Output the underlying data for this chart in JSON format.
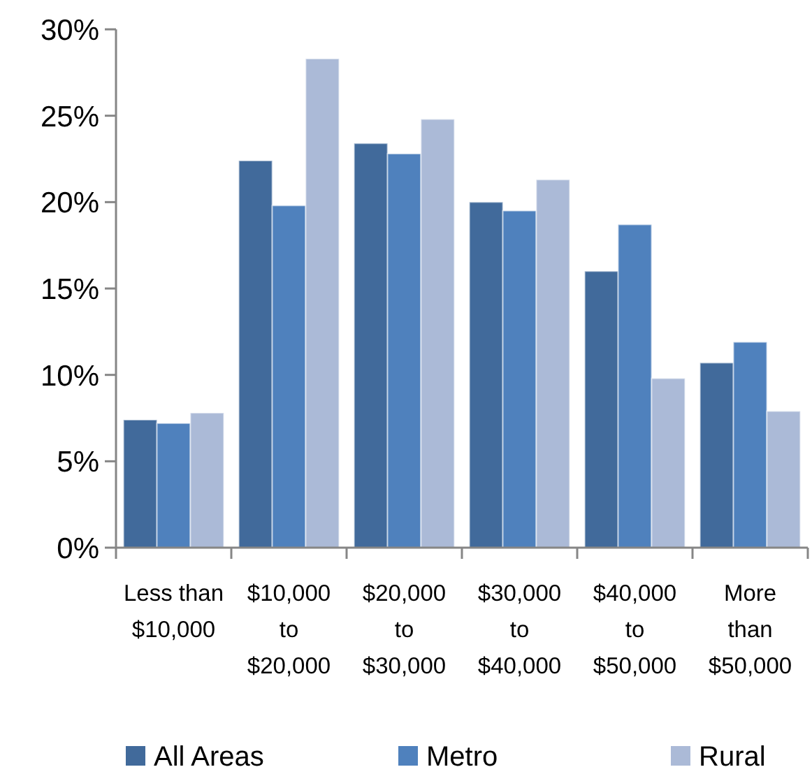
{
  "chart_data": {
    "type": "bar",
    "categories": [
      "Less than\n$10,000",
      "$10,000\nto\n$20,000",
      "$20,000\nto\n$30,000",
      "$30,000\nto\n$40,000",
      "$40,000\nto\n$50,000",
      "More\nthan\n$50,000"
    ],
    "series": [
      {
        "name": "All Areas",
        "color": "#416a9b",
        "values": [
          7.4,
          22.4,
          23.4,
          20.0,
          16.0,
          10.7
        ]
      },
      {
        "name": "Metro",
        "color": "#4f81bd",
        "values": [
          7.2,
          19.8,
          22.8,
          19.5,
          18.7,
          11.9
        ]
      },
      {
        "name": "Rural",
        "color": "#abbad7",
        "values": [
          7.8,
          28.3,
          24.8,
          21.3,
          9.8,
          7.9
        ]
      }
    ],
    "ylim": [
      0,
      30
    ],
    "yticks": [
      {
        "value": 0,
        "label": "0%"
      },
      {
        "value": 5,
        "label": "5%"
      },
      {
        "value": 10,
        "label": "10%"
      },
      {
        "value": 15,
        "label": "15%"
      },
      {
        "value": 20,
        "label": "20%"
      },
      {
        "value": 25,
        "label": "25%"
      },
      {
        "value": 30,
        "label": "30%"
      }
    ],
    "grid": false,
    "legend": "bottom"
  }
}
